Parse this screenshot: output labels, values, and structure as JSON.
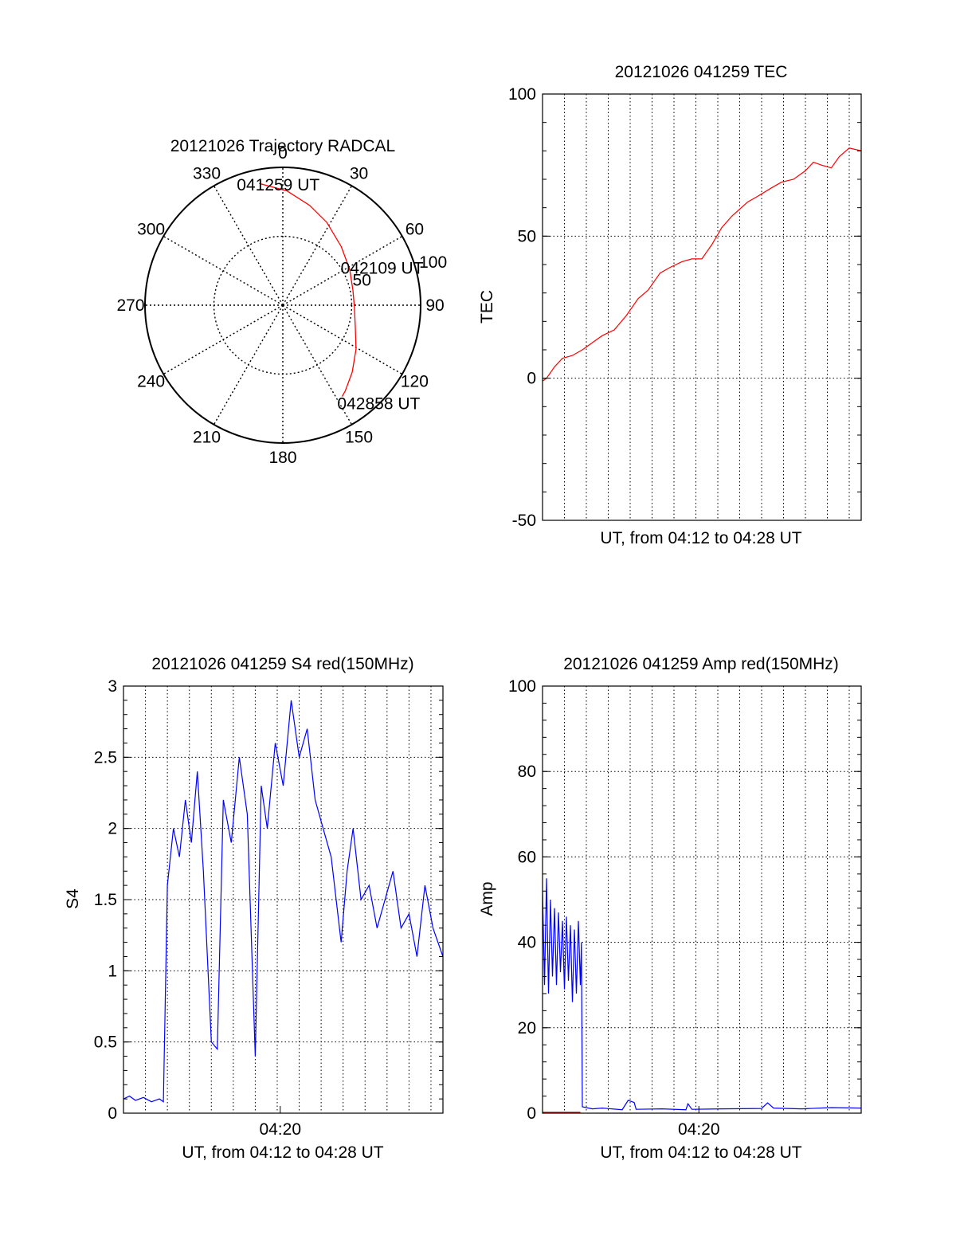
{
  "colors": {
    "red": "#ff0000",
    "blue": "#0000ff",
    "axis": "#000000",
    "grid": "#000000",
    "background": "#ffffff"
  },
  "chart_data": [
    {
      "id": "trajectory",
      "type": "polar",
      "title": "20121026 Trajectory RADCAL",
      "angle_labels": [
        {
          "angle": 0,
          "text": "0"
        },
        {
          "angle": 30,
          "text": "30"
        },
        {
          "angle": 60,
          "text": "60"
        },
        {
          "angle": 90,
          "text": "90"
        },
        {
          "angle": 120,
          "text": "120"
        },
        {
          "angle": 150,
          "text": "150"
        },
        {
          "angle": 180,
          "text": "180"
        },
        {
          "angle": 210,
          "text": "210"
        },
        {
          "angle": 240,
          "text": "240"
        },
        {
          "angle": 270,
          "text": "270"
        },
        {
          "angle": 300,
          "text": "300"
        },
        {
          "angle": 330,
          "text": "330"
        }
      ],
      "radial_max": 100,
      "radial_ticks": [
        {
          "r": 50,
          "text": "50"
        },
        {
          "r": 100,
          "text": "100"
        }
      ],
      "radial_label_angle": 75,
      "series": [
        {
          "color": "red",
          "points": [
            [
              -11,
              90
            ],
            [
              2,
              83
            ],
            [
              15,
              75
            ],
            [
              28,
              68
            ],
            [
              45,
              60
            ],
            [
              62,
              55
            ],
            [
              78,
              52
            ],
            [
              92,
              52
            ],
            [
              107,
              55
            ],
            [
              121,
              62
            ],
            [
              134,
              70
            ],
            [
              144,
              77
            ],
            [
              147,
              79
            ]
          ]
        }
      ],
      "annotations": [
        {
          "text": "041259 UT",
          "angle": -11,
          "r": 90
        },
        {
          "text": "042109 UT",
          "angle": 76,
          "r": 54
        },
        {
          "text": "042858 UT",
          "angle": 147,
          "r": 79
        }
      ]
    },
    {
      "id": "tec",
      "type": "line",
      "title": "20121026 041259 TEC",
      "xlabel": "UT, from 04:12 to 04:28 UT",
      "ylabel": "TEC",
      "xlim": [
        0,
        16
      ],
      "ylim": [
        -50,
        100
      ],
      "yticks": [
        {
          "v": -50,
          "t": "-50"
        },
        {
          "v": 0,
          "t": "0"
        },
        {
          "v": 50,
          "t": "50"
        },
        {
          "v": 100,
          "t": "100"
        }
      ],
      "xticks": [],
      "x_grid": [
        0.0,
        1.1,
        2.2,
        3.3,
        4.4,
        5.5,
        6.6,
        7.7,
        8.8,
        9.9,
        11.0,
        12.1,
        13.2,
        14.3,
        15.4
      ],
      "y_grid": [
        0,
        50
      ],
      "series": [
        {
          "color": "red",
          "points": [
            [
              0.0,
              -1
            ],
            [
              0.2,
              0
            ],
            [
              0.6,
              4
            ],
            [
              1.0,
              7
            ],
            [
              1.5,
              8
            ],
            [
              2.0,
              10
            ],
            [
              2.6,
              13
            ],
            [
              3.0,
              15
            ],
            [
              3.6,
              17
            ],
            [
              4.2,
              22
            ],
            [
              4.8,
              28
            ],
            [
              5.3,
              31
            ],
            [
              5.9,
              37
            ],
            [
              6.4,
              39
            ],
            [
              7.0,
              41
            ],
            [
              7.5,
              42
            ],
            [
              8.0,
              42
            ],
            [
              8.5,
              47
            ],
            [
              9.0,
              53
            ],
            [
              9.5,
              57
            ],
            [
              10.3,
              62
            ],
            [
              10.8,
              64
            ],
            [
              11.5,
              67
            ],
            [
              12.0,
              69
            ],
            [
              12.6,
              70
            ],
            [
              13.2,
              73
            ],
            [
              13.6,
              76
            ],
            [
              14.0,
              75
            ],
            [
              14.5,
              74
            ],
            [
              14.9,
              78
            ],
            [
              15.4,
              81
            ],
            [
              16.0,
              80
            ]
          ]
        }
      ]
    },
    {
      "id": "s4",
      "type": "line",
      "title": "20121026 041259 S4 red(150MHz)",
      "xlabel": "UT, from 04:12 to 04:28 UT",
      "ylabel": "S4",
      "xlim": [
        0,
        16
      ],
      "ylim": [
        0,
        3
      ],
      "yticks": [
        {
          "v": 0,
          "t": "0"
        },
        {
          "v": 0.5,
          "t": "0.5"
        },
        {
          "v": 1,
          "t": "1"
        },
        {
          "v": 1.5,
          "t": "1.5"
        },
        {
          "v": 2,
          "t": "2"
        },
        {
          "v": 2.5,
          "t": "2.5"
        },
        {
          "v": 3,
          "t": "3"
        }
      ],
      "xticks": [
        {
          "v": 7.85,
          "t": "04:20"
        }
      ],
      "x_grid": [
        0.0,
        1.1,
        2.2,
        3.3,
        4.4,
        5.5,
        6.6,
        7.7,
        8.8,
        9.9,
        11.0,
        12.1,
        13.2,
        14.3,
        15.4
      ],
      "y_grid": [
        0.5,
        1,
        1.5,
        2,
        2.5
      ],
      "series": [
        {
          "color": "blue",
          "points": [
            [
              0.0,
              0.1
            ],
            [
              0.3,
              0.12
            ],
            [
              0.6,
              0.09
            ],
            [
              1.0,
              0.11
            ],
            [
              1.4,
              0.08
            ],
            [
              1.8,
              0.1
            ],
            [
              2.0,
              0.08
            ],
            [
              2.2,
              1.6
            ],
            [
              2.5,
              2.0
            ],
            [
              2.8,
              1.8
            ],
            [
              3.1,
              2.2
            ],
            [
              3.4,
              1.9
            ],
            [
              3.7,
              2.4
            ],
            [
              4.0,
              1.7
            ],
            [
              4.4,
              0.5
            ],
            [
              4.7,
              0.45
            ],
            [
              5.0,
              2.2
            ],
            [
              5.4,
              1.9
            ],
            [
              5.8,
              2.5
            ],
            [
              6.2,
              2.1
            ],
            [
              6.6,
              0.4
            ],
            [
              6.9,
              2.3
            ],
            [
              7.2,
              2.0
            ],
            [
              7.6,
              2.6
            ],
            [
              8.0,
              2.3
            ],
            [
              8.4,
              2.9
            ],
            [
              8.8,
              2.5
            ],
            [
              9.2,
              2.7
            ],
            [
              9.6,
              2.2
            ],
            [
              10.0,
              2.0
            ],
            [
              10.4,
              1.8
            ],
            [
              10.9,
              1.2
            ],
            [
              11.2,
              1.7
            ],
            [
              11.5,
              2.0
            ],
            [
              11.9,
              1.5
            ],
            [
              12.3,
              1.6
            ],
            [
              12.7,
              1.3
            ],
            [
              13.1,
              1.5
            ],
            [
              13.5,
              1.7
            ],
            [
              13.9,
              1.3
            ],
            [
              14.3,
              1.4
            ],
            [
              14.7,
              1.1
            ],
            [
              15.1,
              1.6
            ],
            [
              15.5,
              1.3
            ],
            [
              16.0,
              1.1
            ]
          ]
        }
      ]
    },
    {
      "id": "amp",
      "type": "line",
      "title": "20121026 041259 Amp red(150MHz)",
      "xlabel": "UT, from 04:12 to 04:28 UT",
      "ylabel": "Amp",
      "xlim": [
        0,
        16
      ],
      "ylim": [
        0,
        100
      ],
      "yticks": [
        {
          "v": 0,
          "t": "0"
        },
        {
          "v": 20,
          "t": "20"
        },
        {
          "v": 40,
          "t": "40"
        },
        {
          "v": 60,
          "t": "60"
        },
        {
          "v": 80,
          "t": "80"
        },
        {
          "v": 100,
          "t": "100"
        }
      ],
      "xticks": [
        {
          "v": 7.85,
          "t": "04:20"
        }
      ],
      "x_grid": [
        0.0,
        1.1,
        2.2,
        3.3,
        4.4,
        5.5,
        6.6,
        7.7,
        8.8,
        9.9,
        11.0,
        12.1,
        13.2,
        14.3,
        15.4
      ],
      "y_grid": [
        20,
        40,
        60,
        80
      ],
      "series": [
        {
          "color": "red",
          "points": [
            [
              0.0,
              0.2
            ],
            [
              1.9,
              0.2
            ]
          ]
        },
        {
          "color": "blue",
          "points": [
            [
              0.0,
              52
            ],
            [
              0.1,
              30
            ],
            [
              0.2,
              55
            ],
            [
              0.3,
              28
            ],
            [
              0.4,
              50
            ],
            [
              0.5,
              32
            ],
            [
              0.6,
              48
            ],
            [
              0.7,
              30
            ],
            [
              0.8,
              47
            ],
            [
              0.9,
              33
            ],
            [
              1.0,
              45
            ],
            [
              1.1,
              29
            ],
            [
              1.2,
              46
            ],
            [
              1.3,
              31
            ],
            [
              1.4,
              44
            ],
            [
              1.5,
              26
            ],
            [
              1.6,
              43
            ],
            [
              1.7,
              28
            ],
            [
              1.8,
              45
            ],
            [
              1.9,
              30
            ],
            [
              1.95,
              40
            ],
            [
              2.0,
              1.5
            ],
            [
              2.5,
              1.0
            ],
            [
              3.0,
              1.2
            ],
            [
              4.0,
              0.8
            ],
            [
              4.3,
              3.0
            ],
            [
              4.6,
              2.5
            ],
            [
              4.7,
              0.9
            ],
            [
              6.0,
              1.0
            ],
            [
              7.2,
              0.8
            ],
            [
              7.3,
              2.2
            ],
            [
              7.5,
              0.9
            ],
            [
              9.0,
              1.0
            ],
            [
              11.0,
              1.1
            ],
            [
              11.3,
              2.4
            ],
            [
              11.6,
              1.2
            ],
            [
              13.0,
              1.0
            ],
            [
              14.5,
              1.3
            ],
            [
              16.0,
              1.2
            ]
          ]
        }
      ]
    }
  ]
}
